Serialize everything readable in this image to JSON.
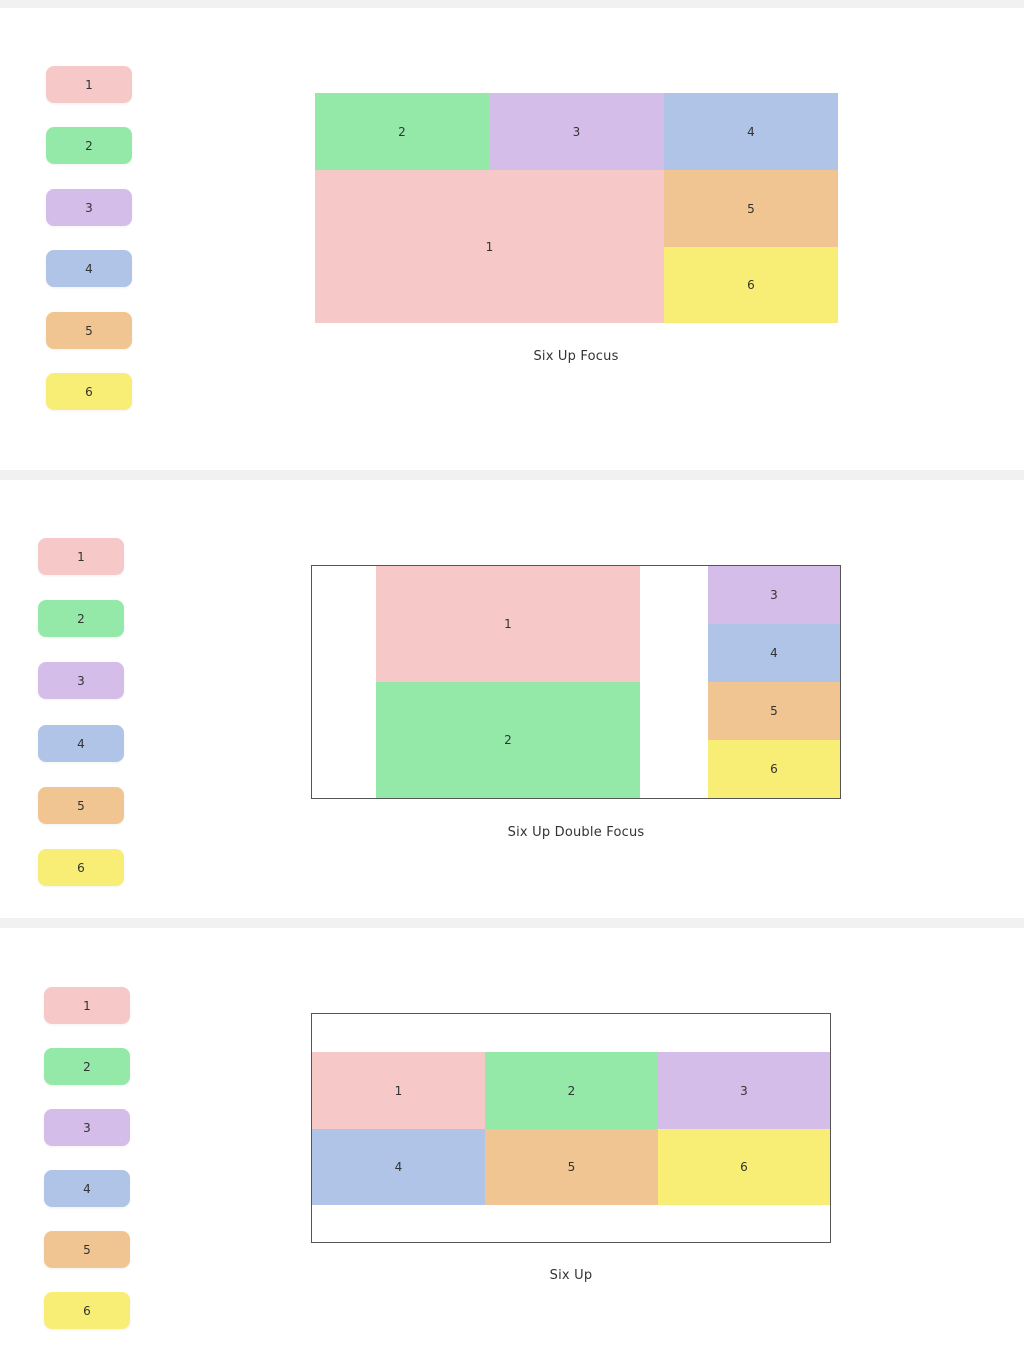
{
  "colors": {
    "1": "#f7c8c8",
    "2": "#94e9a9",
    "3": "#d5bdea",
    "4": "#afc4e6",
    "5": "#f1c591",
    "6": "#f8ee75"
  },
  "layouts": [
    {
      "caption": "Six Up Focus",
      "legend": [
        "1",
        "2",
        "3",
        "4",
        "5",
        "6"
      ],
      "cells": [
        "2",
        "3",
        "4",
        "1",
        "5",
        "6"
      ]
    },
    {
      "caption": "Six Up Double Focus",
      "legend": [
        "1",
        "2",
        "3",
        "4",
        "5",
        "6"
      ],
      "cells": [
        "1",
        "2",
        "3",
        "4",
        "5",
        "6"
      ]
    },
    {
      "caption": "Six Up",
      "legend": [
        "1",
        "2",
        "3",
        "4",
        "5",
        "6"
      ],
      "cells": [
        "1",
        "2",
        "3",
        "4",
        "5",
        "6"
      ]
    }
  ]
}
